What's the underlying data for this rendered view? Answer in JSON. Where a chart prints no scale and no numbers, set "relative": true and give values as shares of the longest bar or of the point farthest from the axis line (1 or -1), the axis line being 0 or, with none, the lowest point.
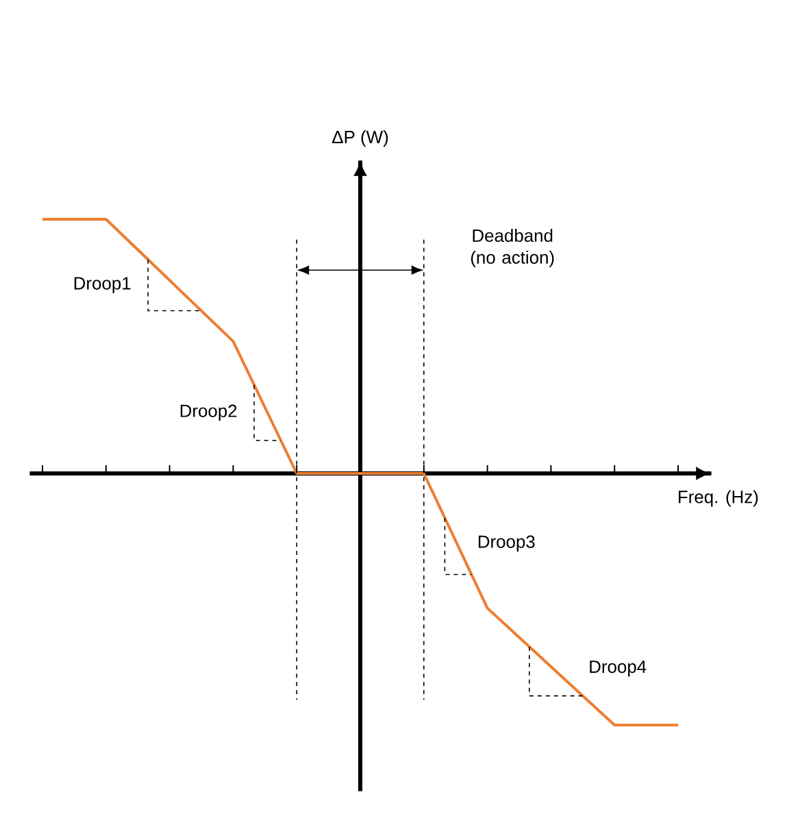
{
  "chart_data": {
    "type": "line",
    "relative": true,
    "xlabel": "Freq. (Hz)",
    "ylabel": "ΔP (W)",
    "tick_labels": false,
    "categories": [
      null,
      null,
      null,
      null,
      null,
      null,
      null,
      null,
      null,
      null,
      null
    ],
    "series": [
      {
        "color": "#ed7d31",
        "values": [
          1,
          1,
          0.76,
          0.52,
          0,
          0,
          0,
          -0.53,
          -0.76,
          -0.99,
          -0.99
        ]
      }
    ],
    "annotations": [
      "Droop1",
      "Droop2",
      "Droop3",
      "Droop4",
      "Deadband (no action)"
    ]
  }
}
